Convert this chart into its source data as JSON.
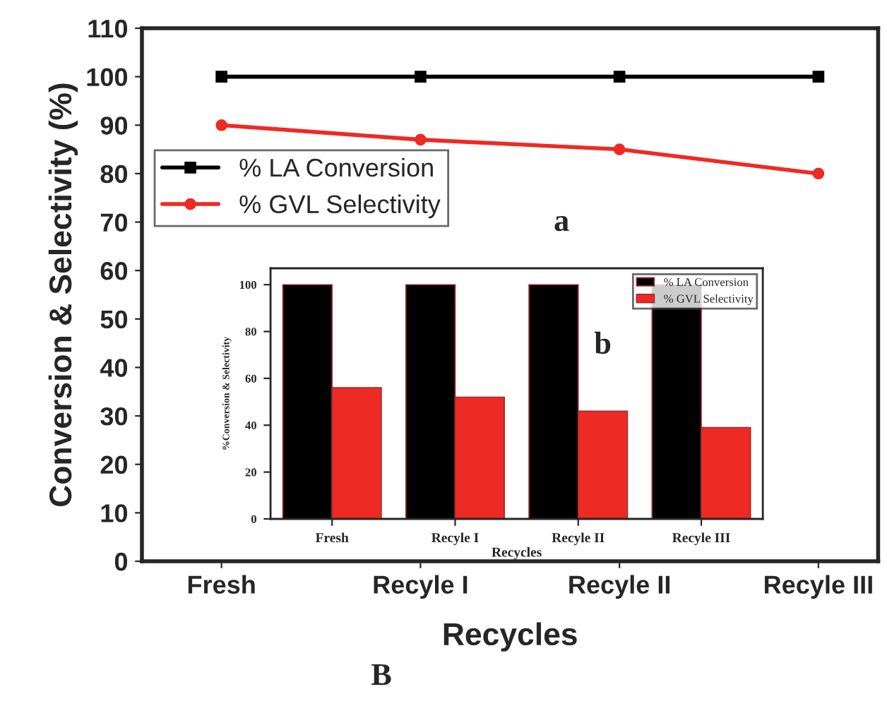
{
  "chart_data": [
    {
      "type": "line",
      "xlabel": "Recycles",
      "ylabel": "Conversion & Selectivity (%)",
      "categories": [
        "Fresh",
        "Recyle I",
        "Recyle II",
        "Recyle III"
      ],
      "series": [
        {
          "name": "% LA Conversion",
          "color": "#000000",
          "marker": "square",
          "values": [
            100,
            100,
            100,
            100
          ]
        },
        {
          "name": "% GVL Selectivity",
          "color": "#ee2a24",
          "marker": "circle",
          "values": [
            90,
            87,
            85,
            80
          ]
        }
      ],
      "ylim": [
        0,
        110
      ],
      "yticks": [
        0,
        10,
        20,
        30,
        40,
        50,
        60,
        70,
        80,
        90,
        100,
        110
      ],
      "grid": false,
      "legend": "left",
      "line_style": "solid",
      "annotations": [
        "a",
        "B"
      ]
    },
    {
      "type": "bar",
      "xlabel": "Recycles",
      "ylabel": "%Conversion & Selectivity",
      "categories": [
        "Fresh",
        "Recyle I",
        "Recyle II",
        "Recyle III"
      ],
      "series": [
        {
          "name": "% LA Conversion",
          "color": "#000000",
          "values": [
            100,
            100,
            100,
            100
          ]
        },
        {
          "name": "% GVL Selectivity",
          "color": "#ee2a24",
          "values": [
            56,
            52,
            46,
            39
          ]
        }
      ],
      "ylim": [
        0,
        107
      ],
      "yticks": [
        0,
        20,
        40,
        60,
        80,
        100
      ],
      "grid": false,
      "legend": "top right",
      "annotations": [
        "b"
      ]
    }
  ]
}
